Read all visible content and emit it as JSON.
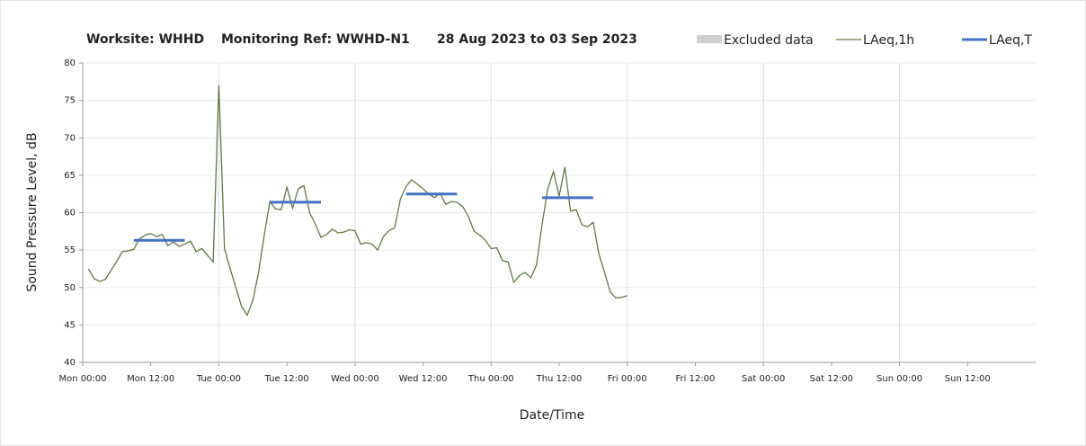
{
  "chart_data": {
    "type": "line",
    "title": [
      "Worksite: WHHD",
      "Monitoring Ref: WWHD-N1",
      "28 Aug 2023 to 03 Sep 2023"
    ],
    "x_label": "Date/Time",
    "y_label": "Sound Pressure Level, dB",
    "xlim": [
      0,
      168
    ],
    "xticks": [
      {
        "value": 0,
        "label": "Mon 00:00"
      },
      {
        "value": 12,
        "label": "Mon 12:00"
      },
      {
        "value": 24,
        "label": "Tue 00:00"
      },
      {
        "value": 36,
        "label": "Tue 12:00"
      },
      {
        "value": 48,
        "label": "Wed 00:00"
      },
      {
        "value": 60,
        "label": "Wed 12:00"
      },
      {
        "value": 72,
        "label": "Thu 00:00"
      },
      {
        "value": 84,
        "label": "Thu 12:00"
      },
      {
        "value": 96,
        "label": "Fri 00:00"
      },
      {
        "value": 108,
        "label": "Fri 12:00"
      },
      {
        "value": 120,
        "label": "Sat 00:00"
      },
      {
        "value": 132,
        "label": "Sat 12:00"
      },
      {
        "value": 144,
        "label": "Sun 00:00"
      },
      {
        "value": 156,
        "label": "Sun 12:00"
      }
    ],
    "ylim": [
      40,
      80
    ],
    "yticks": [
      40,
      45,
      50,
      55,
      60,
      65,
      70,
      75,
      80
    ],
    "grid": true,
    "legend_position": "top-right",
    "legend": [
      {
        "name": "Excluded data",
        "color": "#d0d0d0"
      },
      {
        "name": "LAeq,1h",
        "color": "#5f7a45"
      },
      {
        "name": "LAeq,T",
        "color": "#4472c4"
      }
    ],
    "series": [
      {
        "name": "LAeq,1h",
        "color": "#5f7a45",
        "x": [
          1,
          2,
          3,
          4,
          5,
          6,
          7,
          8,
          9,
          10,
          11,
          12,
          13,
          14,
          15,
          16,
          17,
          18,
          19,
          20,
          21,
          22,
          23,
          24,
          25,
          26,
          27,
          28,
          29,
          30,
          31,
          32,
          33,
          34,
          35,
          36,
          37,
          38,
          39,
          40,
          41,
          42,
          43,
          44,
          45,
          46,
          47,
          48,
          49,
          50,
          51,
          52,
          53,
          54,
          55,
          56,
          57,
          58,
          59,
          60,
          61,
          62,
          63,
          64,
          65,
          66,
          67,
          68,
          69,
          70,
          71,
          72,
          73,
          74,
          75,
          76,
          77,
          78,
          79,
          80,
          81,
          82,
          83,
          84,
          85,
          86,
          87,
          88,
          89,
          90,
          91,
          92,
          93,
          94,
          95,
          96
        ],
        "values": [
          52.5,
          51.2,
          50.8,
          51.1,
          52.3,
          53.5,
          54.8,
          54.9,
          55.1,
          56.5,
          57.0,
          57.2,
          56.8,
          57.1,
          55.6,
          56.1,
          55.5,
          55.8,
          56.2,
          54.8,
          55.2,
          54.3,
          53.4,
          77.0,
          55.2,
          52.5,
          50.0,
          47.5,
          46.3,
          48.3,
          52.0,
          57.0,
          61.5,
          60.5,
          60.4,
          63.4,
          60.6,
          63.2,
          63.6,
          60.0,
          58.5,
          56.7,
          57.1,
          57.8,
          57.3,
          57.4,
          57.7,
          57.6,
          55.8,
          56.0,
          55.8,
          55.0,
          56.8,
          57.6,
          58.0,
          61.8,
          63.5,
          64.4,
          63.8,
          63.2,
          62.5,
          62.0,
          62.6,
          61.1,
          61.5,
          61.4,
          60.8,
          59.5,
          57.5,
          57.0,
          56.3,
          55.2,
          55.3,
          53.6,
          53.4,
          50.7,
          51.6,
          52.0,
          51.3,
          53.0,
          58.5,
          63.2,
          65.5,
          62.2,
          66.1,
          60.2,
          60.4,
          58.4,
          58.1,
          58.7,
          54.5,
          52.0,
          49.4,
          48.6,
          48.7,
          48.9
        ]
      },
      {
        "name": "LAeq,T",
        "color": "#4472c4",
        "segments": [
          {
            "start": 9,
            "end": 18,
            "value": 56.3
          },
          {
            "start": 33,
            "end": 42,
            "value": 61.4
          },
          {
            "start": 57,
            "end": 66,
            "value": 62.5
          },
          {
            "start": 81,
            "end": 90,
            "value": 62.0
          }
        ]
      }
    ]
  }
}
